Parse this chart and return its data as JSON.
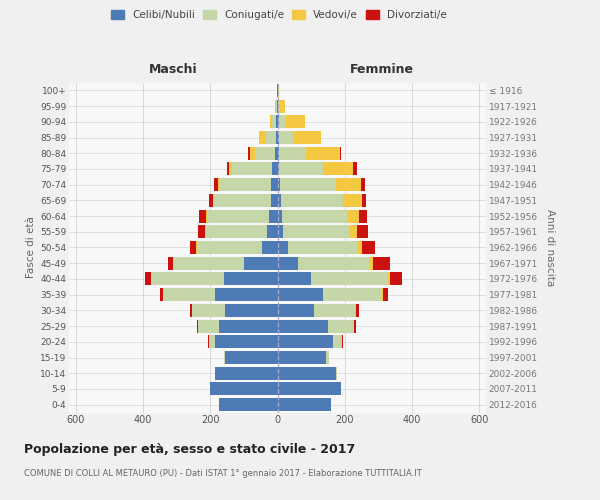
{
  "age_groups": [
    "0-4",
    "5-9",
    "10-14",
    "15-19",
    "20-24",
    "25-29",
    "30-34",
    "35-39",
    "40-44",
    "45-49",
    "50-54",
    "55-59",
    "60-64",
    "65-69",
    "70-74",
    "75-79",
    "80-84",
    "85-89",
    "90-94",
    "95-99",
    "100+"
  ],
  "birth_years": [
    "2012-2016",
    "2007-2011",
    "2002-2006",
    "1997-2001",
    "1992-1996",
    "1987-1991",
    "1982-1986",
    "1977-1981",
    "1972-1976",
    "1967-1971",
    "1962-1966",
    "1957-1961",
    "1952-1956",
    "1947-1951",
    "1942-1946",
    "1937-1941",
    "1932-1936",
    "1927-1931",
    "1922-1926",
    "1917-1921",
    "≤ 1916"
  ],
  "male": {
    "celibe": [
      175,
      200,
      185,
      155,
      185,
      175,
      155,
      185,
      160,
      100,
      45,
      30,
      25,
      20,
      18,
      15,
      8,
      4,
      3,
      2,
      2
    ],
    "coniugato": [
      0,
      0,
      0,
      5,
      20,
      60,
      100,
      155,
      215,
      210,
      195,
      185,
      185,
      170,
      155,
      120,
      60,
      30,
      12,
      2,
      0
    ],
    "vedovo": [
      0,
      0,
      0,
      0,
      0,
      0,
      0,
      0,
      0,
      1,
      1,
      2,
      2,
      3,
      5,
      8,
      15,
      20,
      8,
      2,
      0
    ],
    "divorziato": [
      0,
      0,
      0,
      0,
      2,
      5,
      5,
      10,
      20,
      15,
      20,
      20,
      20,
      10,
      10,
      8,
      5,
      0,
      0,
      0,
      0
    ]
  },
  "female": {
    "nubile": [
      160,
      190,
      175,
      145,
      165,
      150,
      110,
      135,
      100,
      60,
      30,
      15,
      12,
      10,
      8,
      5,
      5,
      5,
      5,
      2,
      2
    ],
    "coniugata": [
      0,
      0,
      2,
      8,
      25,
      75,
      120,
      175,
      230,
      215,
      205,
      200,
      195,
      185,
      165,
      130,
      80,
      40,
      18,
      5,
      0
    ],
    "vedova": [
      0,
      0,
      0,
      0,
      2,
      2,
      3,
      5,
      5,
      10,
      15,
      20,
      35,
      55,
      75,
      90,
      100,
      85,
      60,
      15,
      2
    ],
    "divorziata": [
      0,
      0,
      0,
      0,
      2,
      5,
      8,
      15,
      35,
      50,
      40,
      35,
      25,
      12,
      12,
      10,
      5,
      0,
      0,
      0,
      0
    ]
  },
  "colors": {
    "celibe": "#4e7ab5",
    "coniugato": "#c5d6a8",
    "vedovo": "#f5c842",
    "divorziato": "#cc1111"
  },
  "legend_labels": [
    "Celibi/Nubili",
    "Coniugati/e",
    "Vedovi/e",
    "Divorziati/e"
  ],
  "title": "Popolazione per età, sesso e stato civile - 2017",
  "subtitle": "COMUNE DI COLLI AL METAURO (PU) - Dati ISTAT 1° gennaio 2017 - Elaborazione TUTTITALIA.IT",
  "label_maschi": "Maschi",
  "label_femmine": "Femmine",
  "ylabel_left": "Fasce di età",
  "ylabel_right": "Anni di nascita",
  "xlim": 620,
  "bg_color": "#f0f0f0",
  "plot_bg": "#f8f8f8",
  "grid_color": "#cccccc"
}
